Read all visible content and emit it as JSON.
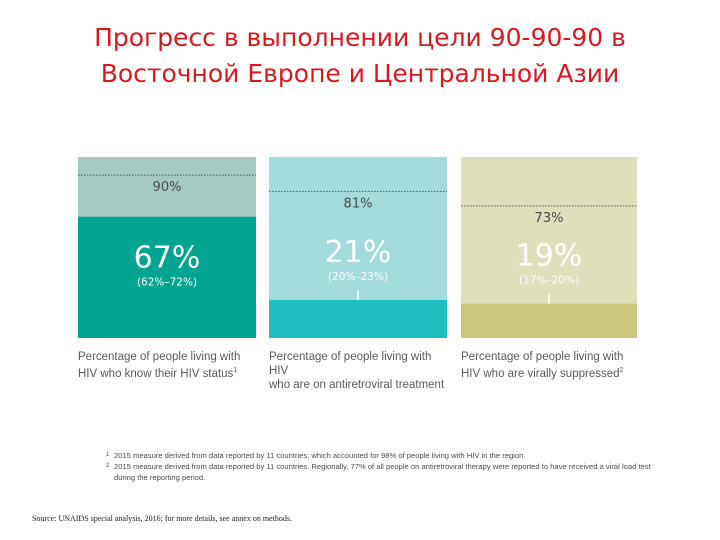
{
  "title": {
    "line1": "Прогресс в выполнении цели 90-90-90 в",
    "line2": "Восточной Европе и Центральной Азии"
  },
  "colors": {
    "bar1_bg": "#a4cac2",
    "bar1_fill": "#00a490",
    "bar2_bg": "#a3dbdc",
    "bar2_fill": "#1fbcc0",
    "bar3_bg": "#e0dfbb",
    "bar3_fill": "#cbc67b",
    "target_text": "#4a4a4a",
    "value_text": "#ffffff"
  },
  "chart_data": {
    "type": "bar",
    "ylim": [
      0,
      100
    ],
    "categories": [
      "Percentage of people living with HIV who know their HIV status",
      "Percentage of people living with HIV who are on antiretroviral treatment",
      "Percentage of people living with HIV who are virally suppressed"
    ],
    "bars": [
      {
        "value": 67,
        "value_label": "67%",
        "range_label": "(62%–72%)",
        "target": 90,
        "target_label": "90%",
        "label_line1": "Percentage of people living with",
        "label_line2": "HIV who know their HIV status",
        "footnote_mark": "1"
      },
      {
        "value": 21,
        "value_label": "21%",
        "range_label": "(20%–23%)",
        "target": 81,
        "target_label": "81%",
        "label_line1": "Percentage of people living with HIV",
        "label_line2": "who are on antiretroviral treatment",
        "footnote_mark": ""
      },
      {
        "value": 19,
        "value_label": "19%",
        "range_label": "(17%–20%)",
        "target": 73,
        "target_label": "73%",
        "label_line1": "Percentage of people living with",
        "label_line2": "HIV who are virally suppressed",
        "footnote_mark": "2"
      }
    ]
  },
  "footnotes": [
    {
      "mark": "1",
      "text": "2015 measure derived from data reported by 11 countries, which accounted for 98% of people living with HIV in the region."
    },
    {
      "mark": "2",
      "text": "2015 measure derived from data reported by 11 countries. Regionally, 77% of all people on antiretroviral therapy were reported to have received a viral load test during the reporting period."
    }
  ],
  "source": "Source: UNAIDS special analysis, 2016; for more details, see annex on methods."
}
